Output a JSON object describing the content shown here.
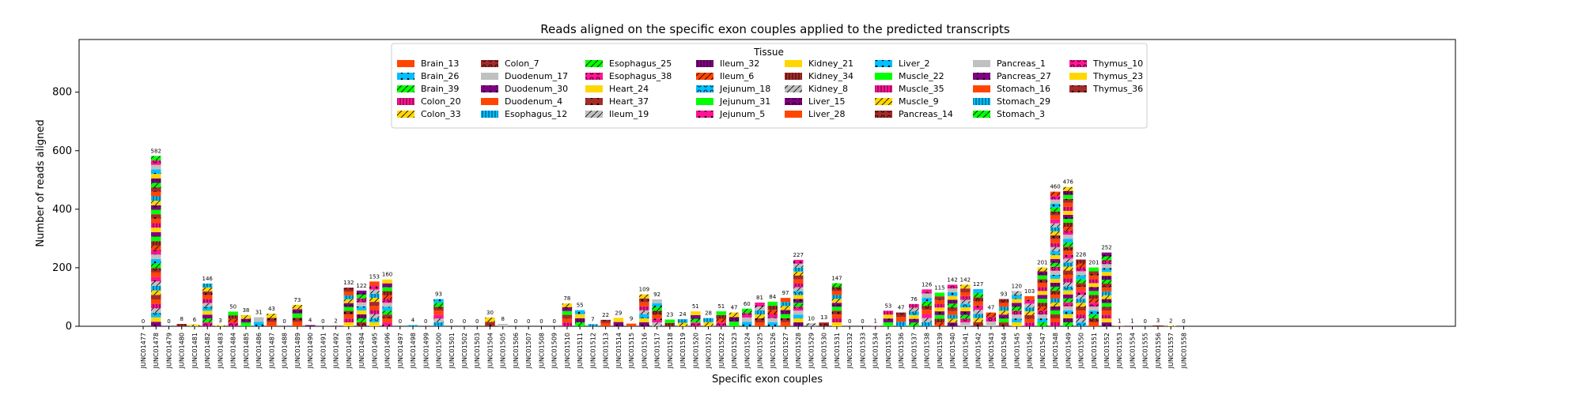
{
  "chart_data": {
    "type": "bar",
    "title": "Reads aligned on the specific exon couples applied to the predicted transcripts",
    "xlabel": "Specific exon couples",
    "ylabel": "Number of reads aligned",
    "ylim": [
      0,
      980
    ],
    "yticks": [
      0,
      200,
      400,
      600,
      800
    ],
    "legend": {
      "title": "Tissue",
      "placement": "top-center",
      "entries": [
        {
          "name": "Brain_13",
          "color": "#FF4500",
          "hatch": ""
        },
        {
          "name": "Brain_26",
          "color": "#00BFFF",
          "hatch": "dot"
        },
        {
          "name": "Brain_39",
          "color": "#00FF00",
          "hatch": "slash"
        },
        {
          "name": "Colon_20",
          "color": "#FF1493",
          "hatch": "bar"
        },
        {
          "name": "Colon_33",
          "color": "#FFD700",
          "hatch": "slash"
        },
        {
          "name": "Colon_7",
          "color": "#A52A2A",
          "hatch": "ring"
        },
        {
          "name": "Duodenum_17",
          "color": "#C0C0C0",
          "hatch": ""
        },
        {
          "name": "Duodenum_30",
          "color": "#800080",
          "hatch": "dot"
        },
        {
          "name": "Duodenum_4",
          "color": "#FF4500",
          "hatch": ""
        },
        {
          "name": "Esophagus_12",
          "color": "#00BFFF",
          "hatch": "bar"
        },
        {
          "name": "Esophagus_25",
          "color": "#00FF00",
          "hatch": "slash"
        },
        {
          "name": "Esophagus_38",
          "color": "#FF1493",
          "hatch": "ring"
        },
        {
          "name": "Heart_24",
          "color": "#FFD700",
          "hatch": ""
        },
        {
          "name": "Heart_37",
          "color": "#A52A2A",
          "hatch": "dot"
        },
        {
          "name": "Ileum_19",
          "color": "#C0C0C0",
          "hatch": "slash"
        },
        {
          "name": "Ileum_32",
          "color": "#800080",
          "hatch": "bar"
        },
        {
          "name": "Ileum_6",
          "color": "#FF4500",
          "hatch": "slash"
        },
        {
          "name": "Jejunum_18",
          "color": "#00BFFF",
          "hatch": "ring"
        },
        {
          "name": "Jejunum_31",
          "color": "#00FF00",
          "hatch": ""
        },
        {
          "name": "Jejunum_5",
          "color": "#FF1493",
          "hatch": "dot"
        },
        {
          "name": "Kidney_21",
          "color": "#FFD700",
          "hatch": ""
        },
        {
          "name": "Kidney_34",
          "color": "#A52A2A",
          "hatch": "bar"
        },
        {
          "name": "Kidney_8",
          "color": "#C0C0C0",
          "hatch": "slash"
        },
        {
          "name": "Liver_15",
          "color": "#800080",
          "hatch": "ring"
        },
        {
          "name": "Liver_28",
          "color": "#FF4500",
          "hatch": ""
        },
        {
          "name": "Liver_2",
          "color": "#00BFFF",
          "hatch": "dot"
        },
        {
          "name": "Muscle_22",
          "color": "#00FF00",
          "hatch": ""
        },
        {
          "name": "Muscle_35",
          "color": "#FF1493",
          "hatch": "bar"
        },
        {
          "name": "Muscle_9",
          "color": "#FFD700",
          "hatch": "slash"
        },
        {
          "name": "Pancreas_14",
          "color": "#A52A2A",
          "hatch": "ring"
        },
        {
          "name": "Pancreas_1",
          "color": "#C0C0C0",
          "hatch": ""
        },
        {
          "name": "Pancreas_27",
          "color": "#800080",
          "hatch": "dot"
        },
        {
          "name": "Stomach_16",
          "color": "#FF4500",
          "hatch": ""
        },
        {
          "name": "Stomach_29",
          "color": "#00BFFF",
          "hatch": "bar"
        },
        {
          "name": "Stomach_3",
          "color": "#00FF00",
          "hatch": "slash"
        },
        {
          "name": "Thymus_10",
          "color": "#FF1493",
          "hatch": "ring"
        },
        {
          "name": "Thymus_23",
          "color": "#FFD700",
          "hatch": ""
        },
        {
          "name": "Thymus_36",
          "color": "#A52A2A",
          "hatch": "dot"
        }
      ]
    },
    "categories": [
      "JUNC01477",
      "JUNC01478",
      "JUNC01479",
      "JUNC01480",
      "JUNC01481",
      "JUNC01482",
      "JUNC01483",
      "JUNC01484",
      "JUNC01485",
      "JUNC01486",
      "JUNC01487",
      "JUNC01488",
      "JUNC01489",
      "JUNC01490",
      "JUNC01491",
      "JUNC01492",
      "JUNC01493",
      "JUNC01494",
      "JUNC01495",
      "JUNC01496",
      "JUNC01497",
      "JUNC01498",
      "JUNC01499",
      "JUNC01500",
      "JUNC01501",
      "JUNC01502",
      "JUNC01503",
      "JUNC01504",
      "JUNC01505",
      "JUNC01506",
      "JUNC01507",
      "JUNC01508",
      "JUNC01509",
      "JUNC01510",
      "JUNC01511",
      "JUNC01512",
      "JUNC01513",
      "JUNC01514",
      "JUNC01515",
      "JUNC01516",
      "JUNC01517",
      "JUNC01518",
      "JUNC01519",
      "JUNC01520",
      "JUNC01521",
      "JUNC01522",
      "JUNC01523",
      "JUNC01524",
      "JUNC01525",
      "JUNC01526",
      "JUNC01527",
      "JUNC01528",
      "JUNC01529",
      "JUNC01530",
      "JUNC01531",
      "JUNC01532",
      "JUNC01533",
      "JUNC01534",
      "JUNC01535",
      "JUNC01536",
      "JUNC01537",
      "JUNC01538",
      "JUNC01539",
      "JUNC01540",
      "JUNC01541",
      "JUNC01542",
      "JUNC01543",
      "JUNC01544",
      "JUNC01545",
      "JUNC01546",
      "JUNC01547",
      "JUNC01548",
      "JUNC01549",
      "JUNC01550",
      "JUNC01551",
      "JUNC01552",
      "JUNC01553",
      "JUNC01554",
      "JUNC01555",
      "JUNC01556",
      "JUNC01557",
      "JUNC01558"
    ],
    "totals": [
      0,
      582,
      0,
      8,
      6,
      146,
      3,
      50,
      38,
      31,
      43,
      0,
      73,
      4,
      0,
      2,
      132,
      122,
      153,
      160,
      0,
      4,
      0,
      93,
      0,
      0,
      0,
      30,
      8,
      0,
      0,
      0,
      0,
      78,
      55,
      7,
      22,
      29,
      9,
      109,
      92,
      23,
      24,
      51,
      28,
      51,
      47,
      60,
      81,
      84,
      97,
      227,
      10,
      13,
      147,
      0,
      0,
      1,
      53,
      47,
      76,
      126,
      115,
      142,
      142,
      127,
      47,
      93,
      120,
      103,
      201,
      460,
      476,
      228,
      201,
      252,
      1,
      1,
      0,
      3,
      2,
      0
    ]
  }
}
